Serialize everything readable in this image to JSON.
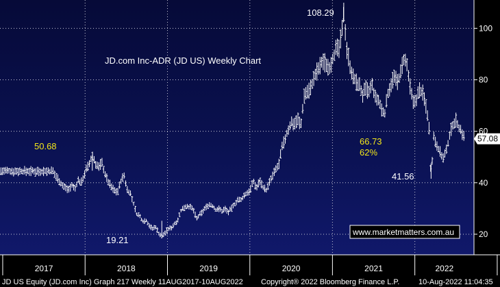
{
  "chart_data": {
    "type": "line",
    "title": "JD.com Inc-ADR (JD US) Weekly Chart",
    "y_ticks": [
      "20",
      "40",
      "60",
      "80",
      "100"
    ],
    "x_ticks": [
      "2017",
      "2018",
      "2019",
      "2020",
      "2021",
      "2022"
    ],
    "ylim": [
      12,
      111
    ],
    "grid": true,
    "last_price": "57.08",
    "watermark": "www.marketmatters.com.au",
    "footer_left": "JD US Equity (JD.com Inc) Graph 217  Weekly 11AUG2017-10AUG2022",
    "footer_mid": "Copyright® 2022 Bloomberg Finance L.P.",
    "footer_right": "10-Aug-2022 11:04:35",
    "annotations": [
      {
        "text": "108.29",
        "color": "white"
      },
      {
        "text": "50.68",
        "color": "yellow"
      },
      {
        "text": "19.21",
        "color": "white"
      },
      {
        "text": "66.73",
        "color": "yellow"
      },
      {
        "text": "62%",
        "color": "yellow"
      },
      {
        "text": "41.56",
        "color": "white"
      }
    ],
    "series": [
      {
        "points": [
          [
            "2017-08-11",
            44.5
          ],
          [
            "2017-08-25",
            42.5
          ],
          [
            "2017-09-08",
            41.0
          ],
          [
            "2017-09-22",
            39.0
          ],
          [
            "2017-10-06",
            38.0
          ],
          [
            "2017-10-20",
            37.5
          ],
          [
            "2017-11-03",
            39.0
          ],
          [
            "2017-11-17",
            37.5
          ],
          [
            "2017-12-01",
            41.0
          ],
          [
            "2017-12-15",
            40.0
          ],
          [
            "2018-01-05",
            45.0
          ],
          [
            "2018-01-19",
            47.0
          ],
          [
            "2018-02-02",
            50.68
          ],
          [
            "2018-02-16",
            47.5
          ],
          [
            "2018-03-02",
            46.0
          ],
          [
            "2018-03-16",
            48.0
          ],
          [
            "2018-03-30",
            43.5
          ],
          [
            "2018-04-13",
            40.5
          ],
          [
            "2018-04-27",
            38.5
          ],
          [
            "2018-05-11",
            37.0
          ],
          [
            "2018-05-25",
            36.5
          ],
          [
            "2018-06-08",
            40.5
          ],
          [
            "2018-06-22",
            43.0
          ],
          [
            "2018-07-06",
            37.5
          ],
          [
            "2018-07-20",
            36.0
          ],
          [
            "2018-08-03",
            32.0
          ],
          [
            "2018-08-17",
            28.0
          ],
          [
            "2018-08-31",
            27.0
          ],
          [
            "2018-09-14",
            25.0
          ],
          [
            "2018-09-28",
            25.5
          ],
          [
            "2018-10-12",
            23.5
          ],
          [
            "2018-10-26",
            22.0
          ],
          [
            "2018-11-09",
            23.0
          ],
          [
            "2018-11-23",
            20.5
          ],
          [
            "2018-12-07",
            19.21
          ],
          [
            "2018-12-21",
            20.5
          ],
          [
            "2019-01-04",
            22.0
          ],
          [
            "2019-01-18",
            22.5
          ],
          [
            "2019-02-01",
            24.0
          ],
          [
            "2019-02-15",
            25.5
          ],
          [
            "2019-03-01",
            29.0
          ],
          [
            "2019-03-15",
            30.5
          ],
          [
            "2019-03-29",
            31.0
          ],
          [
            "2019-04-12",
            30.5
          ],
          [
            "2019-04-26",
            29.5
          ],
          [
            "2019-05-10",
            26.0
          ],
          [
            "2019-05-24",
            27.5
          ],
          [
            "2019-06-07",
            29.0
          ],
          [
            "2019-06-21",
            30.5
          ],
          [
            "2019-07-05",
            31.5
          ],
          [
            "2019-07-19",
            31.0
          ],
          [
            "2019-08-02",
            29.5
          ],
          [
            "2019-08-16",
            30.0
          ],
          [
            "2019-08-30",
            29.0
          ],
          [
            "2019-09-13",
            30.0
          ],
          [
            "2019-09-27",
            28.5
          ],
          [
            "2019-10-11",
            30.0
          ],
          [
            "2019-10-25",
            31.5
          ],
          [
            "2019-11-08",
            33.5
          ],
          [
            "2019-11-22",
            33.0
          ],
          [
            "2019-12-06",
            35.0
          ],
          [
            "2019-12-20",
            36.0
          ],
          [
            "2020-01-03",
            37.5
          ],
          [
            "2020-01-17",
            40.5
          ],
          [
            "2020-01-31",
            38.0
          ],
          [
            "2020-02-14",
            41.0
          ],
          [
            "2020-02-28",
            38.5
          ],
          [
            "2020-03-13",
            37.0
          ],
          [
            "2020-03-27",
            40.0
          ],
          [
            "2020-04-10",
            42.5
          ],
          [
            "2020-04-24",
            45.0
          ],
          [
            "2020-05-08",
            47.0
          ],
          [
            "2020-05-22",
            53.5
          ],
          [
            "2020-06-05",
            57.0
          ],
          [
            "2020-06-19",
            60.5
          ],
          [
            "2020-07-03",
            63.5
          ],
          [
            "2020-07-17",
            63.0
          ],
          [
            "2020-07-31",
            65.0
          ],
          [
            "2020-08-14",
            62.0
          ],
          [
            "2020-08-28",
            74.0
          ],
          [
            "2020-09-11",
            75.5
          ],
          [
            "2020-09-25",
            76.5
          ],
          [
            "2020-10-09",
            80.0
          ],
          [
            "2020-10-23",
            83.0
          ],
          [
            "2020-11-06",
            85.0
          ],
          [
            "2020-11-20",
            87.5
          ],
          [
            "2020-12-04",
            86.0
          ],
          [
            "2020-12-18",
            85.0
          ],
          [
            "2021-01-01",
            88.0
          ],
          [
            "2021-01-15",
            91.5
          ],
          [
            "2021-01-29",
            92.0
          ],
          [
            "2021-02-12",
            97.5
          ],
          [
            "2021-02-19",
            108.29
          ],
          [
            "2021-03-05",
            92.5
          ],
          [
            "2021-03-19",
            86.0
          ],
          [
            "2021-04-02",
            81.0
          ],
          [
            "2021-04-16",
            79.0
          ],
          [
            "2021-04-30",
            78.0
          ],
          [
            "2021-05-14",
            74.0
          ],
          [
            "2021-05-28",
            76.5
          ],
          [
            "2021-06-11",
            75.0
          ],
          [
            "2021-06-25",
            78.0
          ],
          [
            "2021-07-09",
            73.0
          ],
          [
            "2021-07-23",
            72.0
          ],
          [
            "2021-08-06",
            68.5
          ],
          [
            "2021-08-20",
            66.73
          ],
          [
            "2021-09-03",
            74.5
          ],
          [
            "2021-09-17",
            78.5
          ],
          [
            "2021-10-01",
            81.0
          ],
          [
            "2021-10-15",
            79.0
          ],
          [
            "2021-10-29",
            82.0
          ],
          [
            "2021-11-12",
            88.0
          ],
          [
            "2021-11-26",
            86.0
          ],
          [
            "2021-12-10",
            77.5
          ],
          [
            "2021-12-24",
            71.0
          ],
          [
            "2022-01-07",
            72.5
          ],
          [
            "2022-01-21",
            76.0
          ],
          [
            "2022-02-04",
            75.0
          ],
          [
            "2022-02-18",
            70.5
          ],
          [
            "2022-03-04",
            63.5
          ],
          [
            "2022-03-14",
            41.56
          ],
          [
            "2022-03-25",
            58.0
          ],
          [
            "2022-04-08",
            55.0
          ],
          [
            "2022-04-22",
            52.0
          ],
          [
            "2022-05-06",
            49.5
          ],
          [
            "2022-05-20",
            52.0
          ],
          [
            "2022-06-03",
            58.0
          ],
          [
            "2022-06-17",
            62.5
          ],
          [
            "2022-07-01",
            64.5
          ],
          [
            "2022-07-15",
            61.5
          ],
          [
            "2022-07-29",
            59.5
          ],
          [
            "2022-08-10",
            57.08
          ]
        ]
      }
    ]
  }
}
